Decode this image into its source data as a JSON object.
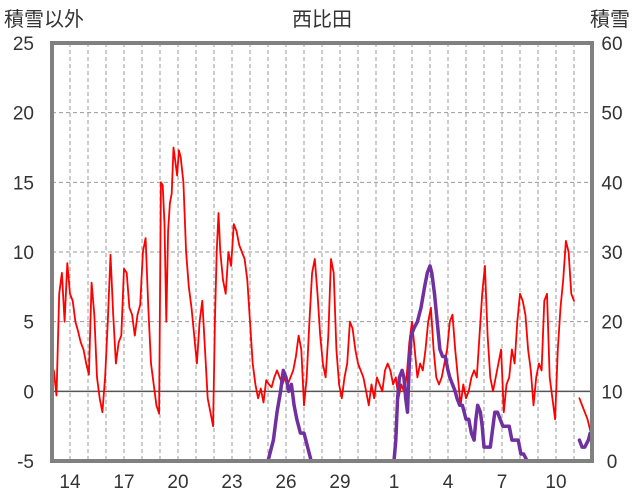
{
  "chart_data": {
    "type": "line",
    "title": "西比田",
    "ylabel_left": "積雪以外",
    "ylabel_right": "積雪",
    "y_left_range": [
      -5,
      25
    ],
    "y_left_ticks": [
      "25",
      "20",
      "15",
      "10",
      "5",
      "0",
      "-5"
    ],
    "y_right_range": [
      0,
      60
    ],
    "y_right_ticks": [
      "60",
      "50",
      "40",
      "30",
      "20",
      "10",
      "0"
    ],
    "x_range_days": [
      0,
      30
    ],
    "x_ticks": [
      "14",
      "17",
      "20",
      "23",
      "26",
      "29",
      "1",
      "4",
      "7",
      "10"
    ],
    "grid": true,
    "colors": {
      "temperature": "#ff0000",
      "snow_depth": "#7030a0",
      "frame": "#808080",
      "grid": "#9a9a9a"
    },
    "series": [
      {
        "axis": "left",
        "color": "#ff0000",
        "points": [
          [
            0.0,
            1.0
          ],
          [
            0.1,
            1.5
          ],
          [
            0.25,
            -0.3
          ],
          [
            0.4,
            7.0
          ],
          [
            0.55,
            8.5
          ],
          [
            0.7,
            5.0
          ],
          [
            0.85,
            9.2
          ],
          [
            1.0,
            7.0
          ],
          [
            1.15,
            6.5
          ],
          [
            1.3,
            5.0
          ],
          [
            1.45,
            4.3
          ],
          [
            1.6,
            3.5
          ],
          [
            1.75,
            3.0
          ],
          [
            1.9,
            2.0
          ],
          [
            2.05,
            1.2
          ],
          [
            2.2,
            7.8
          ],
          [
            2.35,
            5.5
          ],
          [
            2.5,
            1.0
          ],
          [
            2.65,
            -0.5
          ],
          [
            2.8,
            -1.5
          ],
          [
            2.95,
            1.0
          ],
          [
            3.1,
            5.0
          ],
          [
            3.25,
            9.8
          ],
          [
            3.4,
            5.5
          ],
          [
            3.55,
            2.0
          ],
          [
            3.7,
            3.5
          ],
          [
            3.85,
            4.0
          ],
          [
            4.0,
            8.8
          ],
          [
            4.15,
            8.5
          ],
          [
            4.3,
            6.0
          ],
          [
            4.45,
            5.5
          ],
          [
            4.6,
            4.0
          ],
          [
            4.75,
            5.5
          ],
          [
            4.9,
            6.2
          ],
          [
            5.05,
            10.0
          ],
          [
            5.2,
            11.0
          ],
          [
            5.35,
            6.0
          ],
          [
            5.5,
            2.0
          ],
          [
            5.65,
            0.5
          ],
          [
            5.8,
            -1.0
          ],
          [
            5.95,
            -1.6
          ],
          [
            6.05,
            15.0
          ],
          [
            6.15,
            14.8
          ],
          [
            6.25,
            12.0
          ],
          [
            6.35,
            5.0
          ],
          [
            6.45,
            11.5
          ],
          [
            6.55,
            13.5
          ],
          [
            6.65,
            14.2
          ],
          [
            6.75,
            17.5
          ],
          [
            6.85,
            16.5
          ],
          [
            6.95,
            15.5
          ],
          [
            7.05,
            17.3
          ],
          [
            7.15,
            16.8
          ],
          [
            7.3,
            15.0
          ],
          [
            7.45,
            10.0
          ],
          [
            7.6,
            7.5
          ],
          [
            7.75,
            6.0
          ],
          [
            7.9,
            4.0
          ],
          [
            8.05,
            2.0
          ],
          [
            8.2,
            5.0
          ],
          [
            8.35,
            6.5
          ],
          [
            8.5,
            3.0
          ],
          [
            8.65,
            -0.5
          ],
          [
            8.8,
            -1.5
          ],
          [
            8.95,
            -2.5
          ],
          [
            9.05,
            5.0
          ],
          [
            9.15,
            10.0
          ],
          [
            9.25,
            12.8
          ],
          [
            9.35,
            10.0
          ],
          [
            9.5,
            8.0
          ],
          [
            9.65,
            7.0
          ],
          [
            9.8,
            10.0
          ],
          [
            9.95,
            9.0
          ],
          [
            10.1,
            12.0
          ],
          [
            10.25,
            11.5
          ],
          [
            10.4,
            10.5
          ],
          [
            10.55,
            10.0
          ],
          [
            10.7,
            9.5
          ],
          [
            10.85,
            8.0
          ],
          [
            11.0,
            5.0
          ],
          [
            11.15,
            2.0
          ],
          [
            11.3,
            0.5
          ],
          [
            11.45,
            -0.5
          ],
          [
            11.6,
            0.2
          ],
          [
            11.75,
            -0.8
          ],
          [
            11.9,
            0.8
          ],
          [
            12.05,
            0.5
          ],
          [
            12.2,
            0.3
          ],
          [
            12.35,
            1.0
          ],
          [
            12.5,
            1.5
          ],
          [
            12.65,
            1.0
          ],
          [
            12.8,
            0.5
          ],
          [
            12.95,
            1.0
          ],
          [
            13.1,
            0.5
          ],
          [
            13.25,
            1.0
          ],
          [
            13.4,
            1.5
          ],
          [
            13.55,
            2.5
          ],
          [
            13.7,
            4.0
          ],
          [
            13.85,
            3.0
          ],
          [
            14.0,
            -1.0
          ],
          [
            14.15,
            1.0
          ],
          [
            14.3,
            5.0
          ],
          [
            14.45,
            8.5
          ],
          [
            14.6,
            9.5
          ],
          [
            14.75,
            7.0
          ],
          [
            14.9,
            4.0
          ],
          [
            15.05,
            2.0
          ],
          [
            15.2,
            1.0
          ],
          [
            15.35,
            4.0
          ],
          [
            15.5,
            9.5
          ],
          [
            15.65,
            8.5
          ],
          [
            15.8,
            3.0
          ],
          [
            15.95,
            0.5
          ],
          [
            16.1,
            -0.5
          ],
          [
            16.25,
            1.0
          ],
          [
            16.4,
            2.0
          ],
          [
            16.55,
            5.0
          ],
          [
            16.7,
            4.5
          ],
          [
            16.85,
            3.0
          ],
          [
            17.0,
            2.0
          ],
          [
            17.15,
            1.5
          ],
          [
            17.3,
            1.0
          ],
          [
            17.45,
            0.0
          ],
          [
            17.6,
            -1.0
          ],
          [
            17.75,
            0.5
          ],
          [
            17.9,
            -0.5
          ],
          [
            18.05,
            1.0
          ],
          [
            18.2,
            0.5
          ],
          [
            18.35,
            0.0
          ],
          [
            18.5,
            1.5
          ],
          [
            18.65,
            2.0
          ],
          [
            18.8,
            1.5
          ],
          [
            18.95,
            0.5
          ],
          [
            19.1,
            1.0
          ],
          [
            19.25,
            -0.5
          ],
          [
            19.4,
            0.5
          ],
          [
            19.55,
            0.0
          ],
          [
            19.7,
            1.0
          ],
          [
            19.85,
            3.5
          ],
          [
            20.0,
            5.0
          ],
          [
            20.15,
            3.0
          ],
          [
            20.3,
            1.0
          ],
          [
            20.45,
            2.0
          ],
          [
            20.6,
            1.5
          ],
          [
            20.75,
            3.0
          ],
          [
            20.9,
            5.0
          ],
          [
            21.05,
            6.0
          ],
          [
            21.2,
            3.0
          ],
          [
            21.35,
            1.0
          ],
          [
            21.5,
            0.5
          ],
          [
            21.65,
            1.0
          ],
          [
            21.8,
            2.0
          ],
          [
            21.95,
            3.0
          ],
          [
            22.1,
            5.0
          ],
          [
            22.25,
            5.5
          ],
          [
            22.4,
            3.0
          ],
          [
            22.55,
            1.0
          ],
          [
            22.7,
            -1.0
          ],
          [
            22.85,
            0.5
          ],
          [
            23.0,
            -0.5
          ],
          [
            23.15,
            0.0
          ],
          [
            23.3,
            1.0
          ],
          [
            23.45,
            1.5
          ],
          [
            23.6,
            1.0
          ],
          [
            23.75,
            4.0
          ],
          [
            23.9,
            7.0
          ],
          [
            24.05,
            9.0
          ],
          [
            24.2,
            4.0
          ],
          [
            24.35,
            1.0
          ],
          [
            24.5,
            0.0
          ],
          [
            24.65,
            1.0
          ],
          [
            24.8,
            2.0
          ],
          [
            24.95,
            3.0
          ],
          [
            25.1,
            -1.5
          ],
          [
            25.25,
            0.5
          ],
          [
            25.4,
            1.0
          ],
          [
            25.55,
            3.0
          ],
          [
            25.7,
            2.0
          ],
          [
            25.85,
            5.0
          ],
          [
            26.0,
            7.0
          ],
          [
            26.15,
            6.5
          ],
          [
            26.3,
            5.5
          ],
          [
            26.45,
            3.0
          ],
          [
            26.6,
            1.5
          ],
          [
            26.75,
            -1.0
          ],
          [
            26.9,
            1.0
          ],
          [
            27.05,
            2.0
          ],
          [
            27.2,
            1.5
          ],
          [
            27.35,
            6.5
          ],
          [
            27.5,
            7.0
          ],
          [
            27.65,
            1.0
          ],
          [
            27.8,
            -0.5
          ],
          [
            27.95,
            -2.0
          ],
          [
            28.1,
            3.0
          ],
          [
            28.25,
            6.0
          ],
          [
            28.4,
            8.0
          ],
          [
            28.55,
            10.8
          ],
          [
            28.7,
            10.0
          ],
          [
            28.85,
            7.0
          ],
          [
            29.0,
            6.5
          ],
          [
            29.15,
            null
          ],
          [
            29.3,
            -0.5
          ],
          [
            29.45,
            -1.0
          ],
          [
            29.6,
            -1.5
          ],
          [
            29.75,
            -2.0
          ],
          [
            29.9,
            -2.8
          ]
        ]
      },
      {
        "axis": "right",
        "color": "#7030a0",
        "points": [
          [
            0.0,
            0
          ],
          [
            12.0,
            0
          ],
          [
            12.3,
            3
          ],
          [
            12.5,
            7
          ],
          [
            12.7,
            10
          ],
          [
            12.85,
            13
          ],
          [
            13.0,
            12
          ],
          [
            13.15,
            10
          ],
          [
            13.3,
            11
          ],
          [
            13.45,
            8
          ],
          [
            13.6,
            6
          ],
          [
            13.8,
            4
          ],
          [
            14.0,
            4
          ],
          [
            14.2,
            2
          ],
          [
            14.4,
            0
          ],
          [
            19.0,
            0
          ],
          [
            19.1,
            3
          ],
          [
            19.2,
            9
          ],
          [
            19.3,
            12
          ],
          [
            19.45,
            13
          ],
          [
            19.55,
            12
          ],
          [
            19.65,
            9
          ],
          [
            19.75,
            7
          ],
          [
            19.85,
            14
          ],
          [
            19.95,
            18
          ],
          [
            20.1,
            19
          ],
          [
            20.3,
            20
          ],
          [
            20.5,
            22
          ],
          [
            20.7,
            25
          ],
          [
            20.85,
            27
          ],
          [
            21.0,
            28
          ],
          [
            21.1,
            27
          ],
          [
            21.25,
            24
          ],
          [
            21.4,
            20
          ],
          [
            21.55,
            16
          ],
          [
            21.7,
            15
          ],
          [
            21.85,
            15
          ],
          [
            22.0,
            13
          ],
          [
            22.1,
            12
          ],
          [
            22.25,
            11
          ],
          [
            22.4,
            10
          ],
          [
            22.5,
            9
          ],
          [
            22.65,
            8
          ],
          [
            22.8,
            8
          ],
          [
            22.9,
            7
          ],
          [
            23.0,
            6
          ],
          [
            23.15,
            6
          ],
          [
            23.3,
            4
          ],
          [
            23.45,
            3
          ],
          [
            23.55,
            6
          ],
          [
            23.65,
            8
          ],
          [
            23.8,
            7
          ],
          [
            23.9,
            5
          ],
          [
            24.0,
            2
          ],
          [
            24.2,
            2
          ],
          [
            24.35,
            2
          ],
          [
            24.5,
            5
          ],
          [
            24.6,
            7
          ],
          [
            24.75,
            7
          ],
          [
            24.9,
            6
          ],
          [
            25.05,
            5
          ],
          [
            25.2,
            5
          ],
          [
            25.4,
            5
          ],
          [
            25.55,
            3
          ],
          [
            25.7,
            3
          ],
          [
            25.9,
            3
          ],
          [
            26.05,
            1
          ],
          [
            26.2,
            1
          ],
          [
            26.4,
            0
          ],
          [
            29.15,
            null
          ],
          [
            29.3,
            3
          ],
          [
            29.45,
            2
          ],
          [
            29.6,
            2
          ],
          [
            29.8,
            3
          ],
          [
            29.9,
            4
          ]
        ]
      }
    ]
  }
}
